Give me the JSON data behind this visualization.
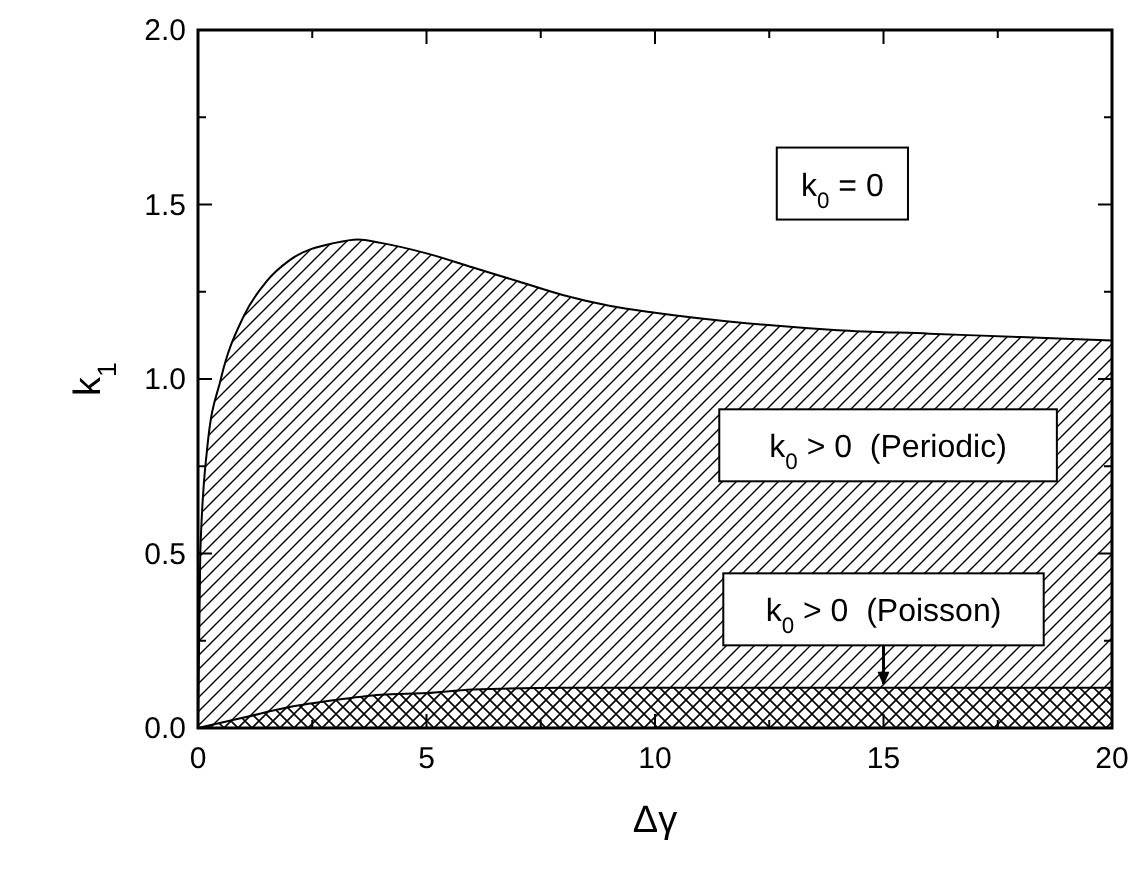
{
  "chart_data": {
    "type": "area",
    "xlabel": "Δγ",
    "ylabel": "k$_{1}$",
    "xlim": [
      0,
      20
    ],
    "ylim": [
      0,
      2.0
    ],
    "xticks": [
      0,
      {
        "value": 2.5,
        "label": null
      },
      5,
      {
        "value": 7.5,
        "label": null
      },
      10,
      {
        "value": 12.5,
        "label": null
      },
      15,
      {
        "value": 17.5,
        "label": null
      },
      20
    ],
    "yticks": [
      {
        "value": 0,
        "label": "0.0"
      },
      {
        "value": 0.25,
        "label": null
      },
      0.5,
      {
        "value": 0.75,
        "label": null
      },
      {
        "value": 1,
        "label": "1.0"
      },
      {
        "value": 1.25,
        "label": null
      },
      1.5,
      {
        "value": 1.75,
        "label": null
      },
      {
        "value": 2,
        "label": "2.0"
      }
    ],
    "series": [
      {
        "color": "#000000",
        "x": [
          0,
          0.05,
          0.2,
          0.5,
          1,
          1.5,
          2,
          3,
          3.5,
          4,
          5,
          6,
          7,
          8,
          9,
          10,
          12,
          14,
          16,
          18,
          20
        ],
        "values": [
          0,
          0.5,
          0.8,
          1.0,
          1.18,
          1.28,
          1.34,
          1.39,
          1.4,
          1.39,
          1.36,
          1.32,
          1.28,
          1.24,
          1.21,
          1.19,
          1.16,
          1.14,
          1.13,
          1.12,
          1.11
        ]
      },
      {
        "color": "#000000",
        "x": [
          0,
          1,
          2,
          3,
          4,
          5,
          6,
          8,
          10,
          15,
          20
        ],
        "values": [
          0,
          0.03,
          0.06,
          0.08,
          0.095,
          0.1,
          0.11,
          0.115,
          0.115,
          0.115,
          0.115
        ]
      }
    ],
    "annotations": [
      "k$_{0}$ = 0",
      "k$_{0}$ > 0  (Periodic)",
      {
        "text": "k$_{0}$ > 0  (Poisson)",
        "x": 15,
        "y": 0.115
      }
    ],
    "grid": false,
    "line_style": "solid"
  }
}
